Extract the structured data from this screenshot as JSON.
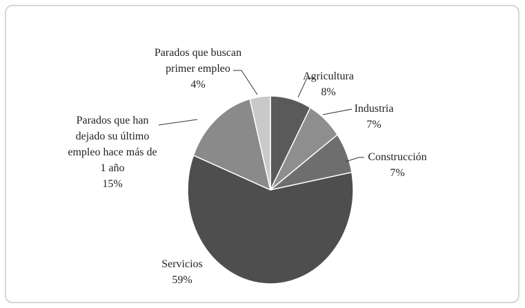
{
  "chart_data": {
    "type": "pie",
    "categories": [
      "Agricultura",
      "Industria",
      "Construcción",
      "Servicios",
      "Parados que han dejado su último empleo hace más de 1 año",
      "Parados que buscan primer empleo"
    ],
    "values": [
      8,
      7,
      7,
      59,
      15,
      4
    ],
    "value_labels": [
      "8%",
      "7%",
      "7%",
      "59%",
      "15%",
      "4%"
    ],
    "colors": [
      "#5a5a5a",
      "#8e8e8e",
      "#6e6e6e",
      "#4e4e4e",
      "#8a8a8a",
      "#c9c9c9"
    ]
  }
}
